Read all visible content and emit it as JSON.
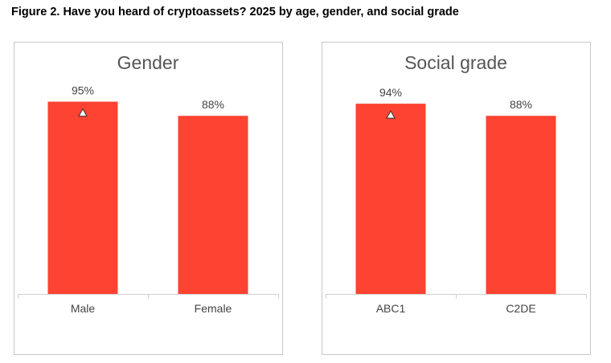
{
  "figure_title": "Figure 2. Have you heard of cryptoassets? 2025 by age, gender, and social grade",
  "colors": {
    "bar": "#fd4331",
    "axis": "#d0d0d0",
    "border": "#c8c8c8"
  },
  "chart_data": [
    {
      "type": "bar",
      "title": "Gender",
      "categories": [
        "Male",
        "Female"
      ],
      "values": [
        95,
        88
      ],
      "value_labels": [
        "95%",
        "88%"
      ],
      "significance_marker": [
        true,
        false
      ],
      "ylim": [
        0,
        100
      ],
      "unit": "%",
      "grid": false
    },
    {
      "type": "bar",
      "title": "Social grade",
      "categories": [
        "ABC1",
        "C2DE"
      ],
      "values": [
        94,
        88
      ],
      "value_labels": [
        "94%",
        "88%"
      ],
      "significance_marker": [
        true,
        false
      ],
      "ylim": [
        0,
        100
      ],
      "unit": "%",
      "grid": false
    }
  ]
}
